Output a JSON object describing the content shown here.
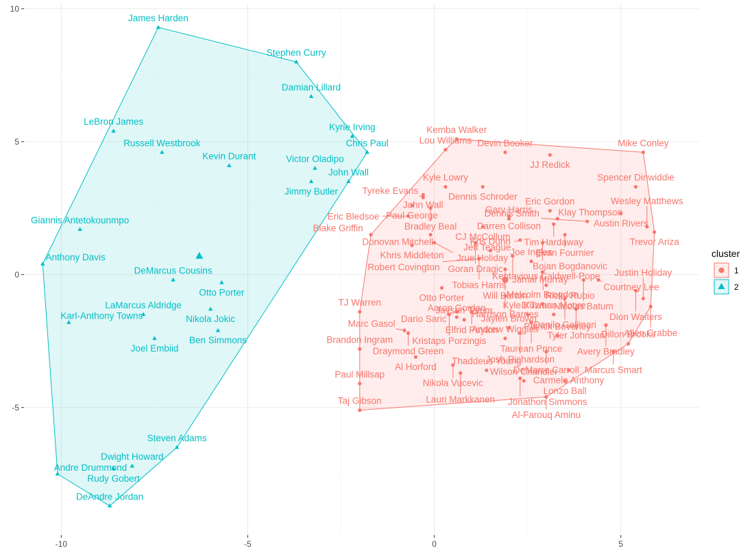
{
  "chart_data": {
    "type": "scatter",
    "xlim": [
      -11,
      7.1
    ],
    "ylim": [
      -9.8,
      10.2
    ],
    "x_ticks": [
      -10,
      -5,
      0,
      5
    ],
    "y_ticks": [
      -5,
      0,
      5,
      10
    ],
    "grid": true,
    "legend": {
      "title": "cluster",
      "position": "right",
      "entries": [
        "1",
        "2"
      ]
    },
    "colors": {
      "1": "#F8766D",
      "2": "#00BFC4"
    },
    "centroids": [
      {
        "cluster": "1",
        "x": 1.9,
        "y": -0.2
      },
      {
        "cluster": "2",
        "x": -6.3,
        "y": 0.7
      }
    ],
    "hull_clusters": [
      "1",
      "2"
    ],
    "series": [
      {
        "name": "1",
        "points": [
          {
            "label": "Kemba Walker",
            "x": 0.6,
            "y": 5.1
          },
          {
            "label": "Lou Williams",
            "x": 0.3,
            "y": 4.7
          },
          {
            "label": "Devin Booker",
            "x": 1.9,
            "y": 4.6
          },
          {
            "label": "JJ Redick",
            "x": 3.1,
            "y": 4.5
          },
          {
            "label": "Mike Conley",
            "x": 5.6,
            "y": 4.6
          },
          {
            "label": "Kyle Lowry",
            "x": 0.3,
            "y": 3.3
          },
          {
            "label": "Dennis Schroder",
            "x": 1.3,
            "y": 3.3
          },
          {
            "label": "Eric Gordon",
            "x": 3.1,
            "y": 2.4
          },
          {
            "label": "Spencer Dinwiddie",
            "x": 5.4,
            "y": 3.3
          },
          {
            "label": "John Wall",
            "x": -0.3,
            "y": 3.0
          },
          {
            "label": "Darren Collison",
            "x": 2.0,
            "y": 2.2
          },
          {
            "label": "Klay Thompson",
            "x": 3.3,
            "y": 2.1
          },
          {
            "label": "Austin Rivers",
            "x": 5.0,
            "y": 2.3
          },
          {
            "label": "Tyreke Evans",
            "x": -0.3,
            "y": 2.9
          },
          {
            "label": "Tim Hardaway",
            "x": 3.2,
            "y": 1.9
          },
          {
            "label": "Trevor Ariza",
            "x": 5.9,
            "y": 1.6
          },
          {
            "label": "Paul George",
            "x": -0.6,
            "y": 2.6
          },
          {
            "label": "Bradley Beal",
            "x": -0.1,
            "y": 2.5
          },
          {
            "label": "Dennis Smith",
            "x": 4.1,
            "y": 2.0
          },
          {
            "label": "Eric Bledsoe",
            "x": -0.7,
            "y": 2.2
          },
          {
            "label": "CJ McCollum",
            "x": 1.3,
            "y": 1.8
          },
          {
            "label": "Gary Harris",
            "x": 2.0,
            "y": 2.1
          },
          {
            "label": "Wesley Matthews",
            "x": 5.7,
            "y": 1.8
          },
          {
            "label": "Donovan Mitchell",
            "x": -0.1,
            "y": 1.5
          },
          {
            "label": "Jeff Teague",
            "x": 2.3,
            "y": 1.3
          },
          {
            "label": "Evan Fournier",
            "x": 3.5,
            "y": 1.5
          },
          {
            "label": "Blake Griffin",
            "x": -1.7,
            "y": 1.5
          },
          {
            "label": "Khris Middleton",
            "x": -0.6,
            "y": 1.1
          },
          {
            "label": "Goran Dragic",
            "x": 1.1,
            "y": 1.2
          },
          {
            "label": "Jrue Holiday",
            "x": 0.0,
            "y": 1.2
          },
          {
            "label": "Bojan Bogdanovic",
            "x": 2.9,
            "y": 1.2
          },
          {
            "label": "Tobias Harris",
            "x": 1.2,
            "y": 0.6
          },
          {
            "label": "Kris Dunn",
            "x": 1.5,
            "y": 0.9
          },
          {
            "label": "Jamal Murray",
            "x": 2.1,
            "y": 0.7
          },
          {
            "label": "Joe Ingles",
            "x": 2.6,
            "y": 0.5
          },
          {
            "label": "Robert Covington",
            "x": 1.2,
            "y": 0.6
          },
          {
            "label": "Courtney Lee",
            "x": 4.4,
            "y": -0.2
          },
          {
            "label": "Will Barton",
            "x": 1.9,
            "y": 0.2
          },
          {
            "label": "Ricky Rubio",
            "x": 2.9,
            "y": 0.1
          },
          {
            "label": "Nicolas Batum",
            "x": 4.0,
            "y": -0.2
          },
          {
            "label": "Dion Waiters",
            "x": 5.4,
            "y": -0.6
          },
          {
            "label": "Otto Porter",
            "x": 0.2,
            "y": -0.5
          },
          {
            "label": "Kentavious Caldwell-Pope",
            "x": 3.0,
            "y": -0.4
          },
          {
            "label": "Harrison Barnes",
            "x": 1.9,
            "y": -0.8
          },
          {
            "label": "Danilo Gallinari",
            "x": 3.5,
            "y": -0.9
          },
          {
            "label": "Malcolm Brogdon",
            "x": 2.9,
            "y": -1.1
          },
          {
            "label": "Justin Holiday",
            "x": 5.6,
            "y": -0.9
          },
          {
            "label": "TJ Warren",
            "x": -2.0,
            "y": -1.4
          },
          {
            "label": "Dario Saric",
            "x": 0.6,
            "y": -1.4
          },
          {
            "label": "Elfrid Payton",
            "x": 1.0,
            "y": -1.4
          },
          {
            "label": "Tyler Johnson",
            "x": 3.8,
            "y": -1.3
          },
          {
            "label": "Kristaps Porzingis",
            "x": 0.4,
            "y": -1.5
          },
          {
            "label": "Kyle Kuzma",
            "x": 2.5,
            "y": -1.5
          },
          {
            "label": "Allen Crabbe",
            "x": 5.8,
            "y": -1.2
          },
          {
            "label": "Marc Gasol",
            "x": -0.8,
            "y": -2.1
          },
          {
            "label": "Aaron Gordon",
            "x": 0.6,
            "y": -1.6
          },
          {
            "label": "Jayson Tatum",
            "x": 0.8,
            "y": -1.7
          },
          {
            "label": "Taurean Prince",
            "x": 2.6,
            "y": -1.8
          },
          {
            "label": "D'Twaun Moore",
            "x": 3.2,
            "y": -1.5
          },
          {
            "label": "Avery Bradley",
            "x": 4.6,
            "y": -1.9
          },
          {
            "label": "Draymond Green",
            "x": -0.7,
            "y": -2.2
          },
          {
            "label": "Jaylen Brown",
            "x": 2.0,
            "y": -2.0
          },
          {
            "label": "Josh Richardson",
            "x": 2.3,
            "y": -2.2
          },
          {
            "label": "Patrick Beverley",
            "x": 3.3,
            "y": -2.3
          },
          {
            "label": "Brandon Ingram",
            "x": -2.0,
            "y": -2.8
          },
          {
            "label": "Al Horford",
            "x": -0.5,
            "y": -3.1
          },
          {
            "label": "Andrew Wiggins",
            "x": 1.9,
            "y": -2.4
          },
          {
            "label": "Marcus Smart",
            "x": 4.8,
            "y": -2.9
          },
          {
            "label": "DeMarre Carroll",
            "x": 3.0,
            "y": -2.9
          },
          {
            "label": "Carmelo Anthony",
            "x": 3.6,
            "y": -3.6
          },
          {
            "label": "Nikola Vucevic",
            "x": 0.5,
            "y": -3.4
          },
          {
            "label": "Lauri Markkanen",
            "x": 0.7,
            "y": -3.7
          },
          {
            "label": "Lonzo Ball",
            "x": 3.5,
            "y": -4.0
          },
          {
            "label": "Dillon Brooks",
            "x": 5.2,
            "y": -2.6
          },
          {
            "label": "Paul Millsap",
            "x": -2.0,
            "y": -4.1
          },
          {
            "label": "Jonathon Simmons",
            "x": 2.3,
            "y": -3.9
          },
          {
            "label": "Thaddeus Young",
            "x": 1.4,
            "y": -3.6
          },
          {
            "label": "Wilson Chandler",
            "x": 2.4,
            "y": -4.0
          },
          {
            "label": "Taj Gibson",
            "x": -2.0,
            "y": -5.1
          },
          {
            "label": "Al-Farouq Aminu",
            "x": 3.0,
            "y": -4.6
          }
        ]
      },
      {
        "name": "2",
        "points": [
          {
            "label": "James Harden",
            "x": -7.4,
            "y": 9.3
          },
          {
            "label": "Stephen Curry",
            "x": -3.7,
            "y": 8.0
          },
          {
            "label": "Damian Lillard",
            "x": -3.3,
            "y": 6.7
          },
          {
            "label": "LeBron James",
            "x": -8.6,
            "y": 5.4
          },
          {
            "label": "Kyrie Irving",
            "x": -2.2,
            "y": 5.2
          },
          {
            "label": "Russell Westbrook",
            "x": -7.3,
            "y": 4.6
          },
          {
            "label": "Chris Paul",
            "x": -1.8,
            "y": 4.6
          },
          {
            "label": "Kevin Durant",
            "x": -5.5,
            "y": 4.1
          },
          {
            "label": "Victor Oladipo",
            "x": -3.2,
            "y": 4.0
          },
          {
            "label": "John Wall",
            "x": -2.3,
            "y": 3.5
          },
          {
            "label": "Jimmy Butler",
            "x": -3.3,
            "y": 3.5
          },
          {
            "label": "Giannis Antetokounmpo",
            "x": -9.5,
            "y": 1.7
          },
          {
            "label": "Anthony Davis",
            "x": -10.5,
            "y": 0.4
          },
          {
            "label": "DeMarcus Cousins",
            "x": -7.0,
            "y": -0.2
          },
          {
            "label": "Otto Porter",
            "x": -5.7,
            "y": -0.3
          },
          {
            "label": "LaMarcus Aldridge",
            "x": -7.8,
            "y": -1.5
          },
          {
            "label": "Nikola Jokic",
            "x": -6.0,
            "y": -1.3
          },
          {
            "label": "Karl-Anthony Towns",
            "x": -9.8,
            "y": -1.8
          },
          {
            "label": "Joel Embiid",
            "x": -7.5,
            "y": -2.4
          },
          {
            "label": "Ben Simmons",
            "x": -5.8,
            "y": -2.1
          },
          {
            "label": "Steven Adams",
            "x": -6.9,
            "y": -6.5
          },
          {
            "label": "Dwight Howard",
            "x": -8.1,
            "y": -7.2
          },
          {
            "label": "Rudy Gobert",
            "x": -8.6,
            "y": -7.3
          },
          {
            "label": "Andre Drummond",
            "x": -10.1,
            "y": -7.5
          },
          {
            "label": "DeAndre Jordan",
            "x": -8.7,
            "y": -8.7
          }
        ]
      }
    ]
  },
  "label_offsets_note_free": true
}
